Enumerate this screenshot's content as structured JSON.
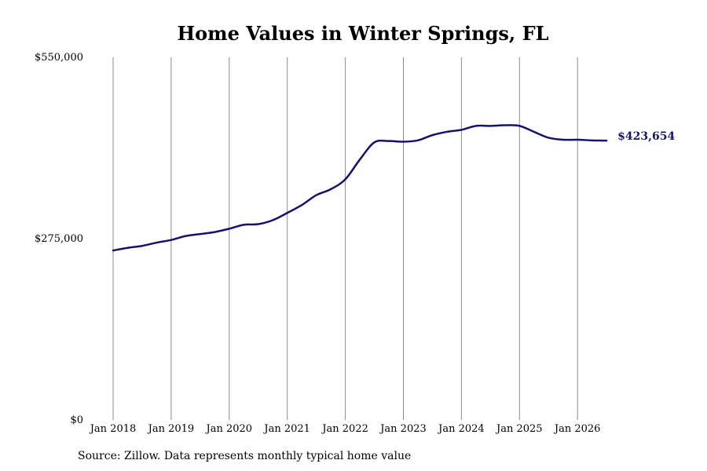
{
  "chart_data": {
    "type": "line",
    "title": "Home Values in Winter Springs, FL",
    "source": "Source: Zillow. Data represents monthly typical home value",
    "ylim": [
      0,
      550000
    ],
    "y_ticks": [
      {
        "value": 0,
        "label": "$0"
      },
      {
        "value": 275000,
        "label": "$275,000"
      },
      {
        "value": 550000,
        "label": "$550,000"
      }
    ],
    "x_ticks": [
      {
        "date": "2018-01",
        "label": "Jan 2018"
      },
      {
        "date": "2019-01",
        "label": "Jan 2019"
      },
      {
        "date": "2020-01",
        "label": "Jan 2020"
      },
      {
        "date": "2021-01",
        "label": "Jan 2021"
      },
      {
        "date": "2022-01",
        "label": "Jan 2022"
      },
      {
        "date": "2023-01",
        "label": "Jan 2023"
      },
      {
        "date": "2024-01",
        "label": "Jan 2024"
      },
      {
        "date": "2025-01",
        "label": "Jan 2025"
      },
      {
        "date": "2026-01",
        "label": "Jan 2026"
      }
    ],
    "grid": {
      "vertical": true,
      "horizontal": false
    },
    "line_color": "#14146b",
    "end_label": "$423,654",
    "series": [
      {
        "x": [
          "2018-01",
          "2018-04",
          "2018-07",
          "2018-10",
          "2019-01",
          "2019-04",
          "2019-07",
          "2019-10",
          "2020-01",
          "2020-04",
          "2020-07",
          "2020-10",
          "2021-01",
          "2021-04",
          "2021-07",
          "2021-10",
          "2022-01",
          "2022-04",
          "2022-07",
          "2022-10",
          "2023-01",
          "2023-04",
          "2023-07",
          "2023-10",
          "2024-01",
          "2024-04",
          "2024-07",
          "2024-10",
          "2025-01",
          "2025-04",
          "2025-07",
          "2025-10",
          "2026-01",
          "2026-04",
          "2026-07"
        ],
        "values": [
          257000,
          261000,
          264000,
          269000,
          273000,
          279000,
          282000,
          285000,
          290000,
          296000,
          297000,
          303000,
          314000,
          326000,
          341000,
          350000,
          365000,
          395000,
          421000,
          423000,
          422000,
          424000,
          432000,
          437000,
          440000,
          446000,
          446000,
          447000,
          446000,
          437000,
          428000,
          425000,
          425000,
          424000,
          423654
        ]
      }
    ]
  }
}
